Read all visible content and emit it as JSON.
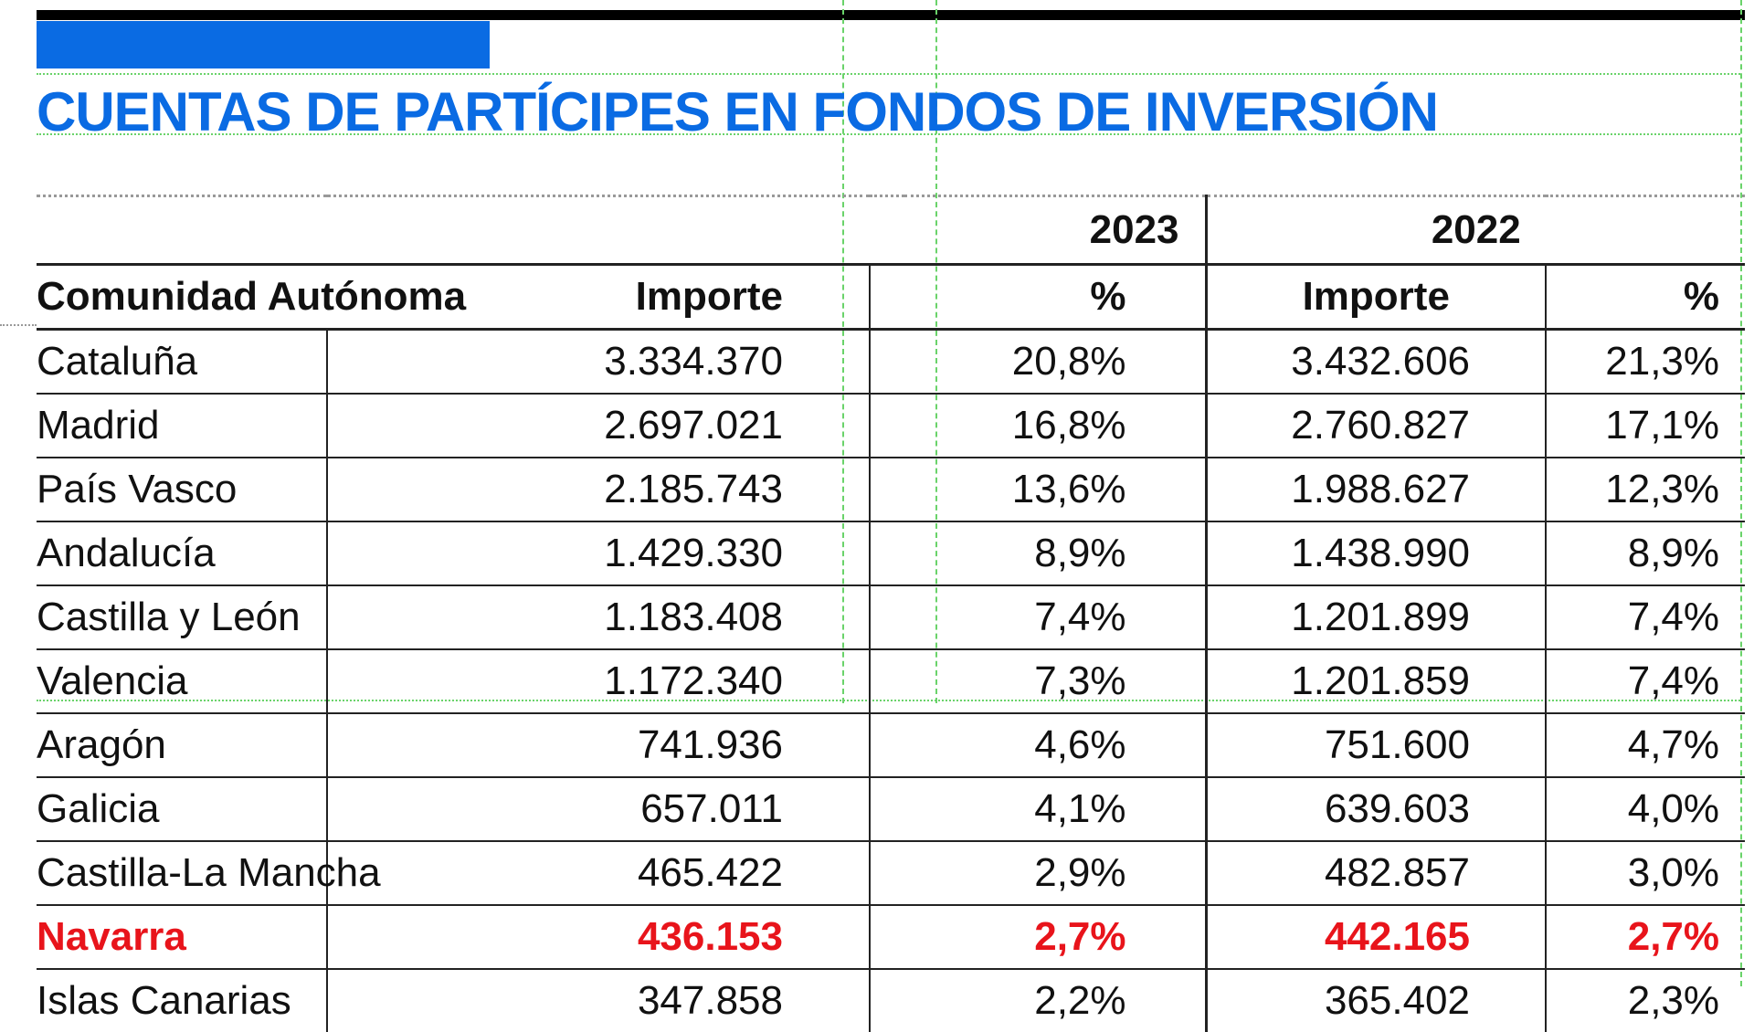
{
  "title": "CUENTAS DE PARTÍCIPES EN FONDOS DE INVERSIÓN",
  "colors": {
    "title": "#0a6be3",
    "highlight": "#e8141b"
  },
  "years": [
    "2023",
    "2022"
  ],
  "headers": {
    "region": "Comunidad Autónoma",
    "importe_2023": "Importe",
    "pct_2023": "%",
    "importe_2022": "Importe",
    "pct_2022": "%"
  },
  "rows": [
    {
      "region": "Cataluña",
      "importe_2023": "3.334.370",
      "pct_2023": "20,8%",
      "importe_2022": "3.432.606",
      "pct_2022": "21,3%"
    },
    {
      "region": "Madrid",
      "importe_2023": "2.697.021",
      "pct_2023": "16,8%",
      "importe_2022": "2.760.827",
      "pct_2022": "17,1%"
    },
    {
      "region": "País Vasco",
      "importe_2023": "2.185.743",
      "pct_2023": "13,6%",
      "importe_2022": "1.988.627",
      "pct_2022": "12,3%"
    },
    {
      "region": "Andalucía",
      "importe_2023": "1.429.330",
      "pct_2023": "8,9%",
      "importe_2022": "1.438.990",
      "pct_2022": "8,9%"
    },
    {
      "region": "Castilla y León",
      "importe_2023": "1.183.408",
      "pct_2023": "7,4%",
      "importe_2022": "1.201.899",
      "pct_2022": "7,4%"
    },
    {
      "region": "Valencia",
      "importe_2023": "1.172.340",
      "pct_2023": "7,3%",
      "importe_2022": "1.201.859",
      "pct_2022": "7,4%"
    },
    {
      "region": "Aragón",
      "importe_2023": "741.936",
      "pct_2023": "4,6%",
      "importe_2022": "751.600",
      "pct_2022": "4,7%"
    },
    {
      "region": "Galicia",
      "importe_2023": "657.011",
      "pct_2023": "4,1%",
      "importe_2022": "639.603",
      "pct_2022": "4,0%"
    },
    {
      "region": "Castilla-La Mancha",
      "importe_2023": "465.422",
      "pct_2023": "2,9%",
      "importe_2022": "482.857",
      "pct_2022": "3,0%"
    },
    {
      "region": "Navarra",
      "importe_2023": "436.153",
      "pct_2023": "2,7%",
      "importe_2022": "442.165",
      "pct_2022": "2,7%",
      "highlight": true
    },
    {
      "region": "Islas Canarias",
      "importe_2023": "347.858",
      "pct_2023": "2,2%",
      "importe_2022": "365.402",
      "pct_2022": "2,3%"
    }
  ]
}
